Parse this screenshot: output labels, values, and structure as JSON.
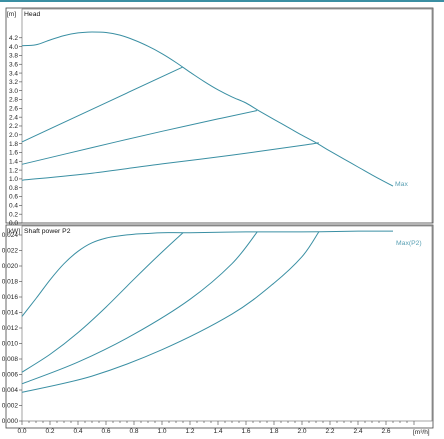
{
  "chart_data": [
    {
      "type": "line",
      "title": "Head",
      "yunit": "[m]",
      "ylim": [
        0,
        4.4
      ],
      "yticks": [
        0.0,
        0.2,
        0.4,
        0.6,
        0.8,
        1.0,
        1.2,
        1.4,
        1.6,
        1.8,
        2.0,
        2.2,
        2.4,
        2.6,
        2.8,
        3.0,
        3.2,
        3.4,
        3.6,
        3.8,
        4.0,
        4.2
      ],
      "ytick_labels": [
        "0.0",
        "0.2",
        "0.4",
        "0.6",
        "0.8",
        "1.0",
        "1.2",
        "1.4",
        "1.6",
        "1.8",
        "2.0",
        "2.2",
        "2.4",
        "2.6",
        "2.8",
        "3.0",
        "3.2",
        "3.4",
        "3.6",
        "3.8",
        "4.0",
        "4.2"
      ],
      "xlim": [
        0,
        2.8
      ],
      "series": [
        {
          "name": "Max",
          "points": [
            [
              0.0,
              4.02
            ],
            [
              0.1,
              4.04
            ],
            [
              0.2,
              4.15
            ],
            [
              0.3,
              4.25
            ],
            [
              0.4,
              4.31
            ],
            [
              0.5,
              4.33
            ],
            [
              0.6,
              4.32
            ],
            [
              0.7,
              4.26
            ],
            [
              0.8,
              4.15
            ],
            [
              0.9,
              4.01
            ],
            [
              1.0,
              3.84
            ],
            [
              1.1,
              3.64
            ],
            [
              1.2,
              3.42
            ],
            [
              1.3,
              3.21
            ],
            [
              1.4,
              3.02
            ],
            [
              1.5,
              2.86
            ],
            [
              1.6,
              2.72
            ],
            [
              1.7,
              2.53
            ],
            [
              1.8,
              2.35
            ],
            [
              1.9,
              2.17
            ],
            [
              2.0,
              1.99
            ],
            [
              2.1,
              1.82
            ],
            [
              2.2,
              1.63
            ],
            [
              2.3,
              1.45
            ],
            [
              2.4,
              1.27
            ],
            [
              2.5,
              1.09
            ],
            [
              2.6,
              0.92
            ],
            [
              2.65,
              0.84
            ]
          ]
        },
        {
          "points": [
            [
              0.0,
              1.84
            ],
            [
              1.15,
              3.54
            ]
          ]
        },
        {
          "points": [
            [
              0.0,
              1.33
            ],
            [
              0.5,
              1.71
            ],
            [
              1.0,
              2.08
            ],
            [
              1.4,
              2.36
            ],
            [
              1.68,
              2.55
            ]
          ]
        },
        {
          "points": [
            [
              0.0,
              0.97
            ],
            [
              0.5,
              1.13
            ],
            [
              1.0,
              1.34
            ],
            [
              1.5,
              1.54
            ],
            [
              2.0,
              1.76
            ],
            [
              2.12,
              1.82
            ]
          ]
        }
      ],
      "curve_label": "Max"
    },
    {
      "type": "line",
      "title": "Shaft power P2",
      "yunit": "[kW]",
      "xlabel": "[m³/h]",
      "ylim": [
        0,
        0.025
      ],
      "yticks": [
        0.0,
        0.002,
        0.004,
        0.006,
        0.008,
        0.01,
        0.012,
        0.014,
        0.016,
        0.018,
        0.02,
        0.022,
        0.024
      ],
      "ytick_labels": [
        "0.000",
        "0.002",
        "0.004",
        "0.006",
        "0.008",
        "0.010",
        "0.012",
        "0.014",
        "0.016",
        "0.018",
        "0.020",
        "0.022",
        "0.024"
      ],
      "xlim": [
        0,
        2.8
      ],
      "xticks": [
        0.0,
        0.2,
        0.4,
        0.6,
        0.8,
        1.0,
        1.2,
        1.4,
        1.6,
        1.8,
        2.0,
        2.2,
        2.4,
        2.6
      ],
      "xtick_labels": [
        "0.0",
        "0.2",
        "0.4",
        "0.6",
        "0.8",
        "1.0",
        "1.2",
        "1.4",
        "1.6",
        "1.8",
        "2.0",
        "2.2",
        "2.4",
        "2.6"
      ],
      "series": [
        {
          "name": "Max",
          "points": [
            [
              0.0,
              0.0135
            ],
            [
              0.1,
              0.0158
            ],
            [
              0.2,
              0.0182
            ],
            [
              0.3,
              0.0203
            ],
            [
              0.4,
              0.0219
            ],
            [
              0.5,
              0.023
            ],
            [
              0.6,
              0.0236
            ],
            [
              0.7,
              0.0239
            ],
            [
              0.8,
              0.0241
            ],
            [
              0.9,
              0.0242
            ],
            [
              1.0,
              0.0243
            ],
            [
              1.2,
              0.0243
            ],
            [
              1.6,
              0.0244
            ],
            [
              2.0,
              0.0244
            ],
            [
              2.4,
              0.0245
            ],
            [
              2.65,
              0.0245
            ]
          ]
        },
        {
          "points": [
            [
              0.0,
              0.0063
            ],
            [
              0.2,
              0.0086
            ],
            [
              0.4,
              0.0114
            ],
            [
              0.6,
              0.0147
            ],
            [
              0.8,
              0.0183
            ],
            [
              1.0,
              0.0218
            ],
            [
              1.15,
              0.0243
            ]
          ]
        },
        {
          "points": [
            [
              0.0,
              0.0048
            ],
            [
              0.4,
              0.0076
            ],
            [
              0.8,
              0.0112
            ],
            [
              1.2,
              0.0157
            ],
            [
              1.5,
              0.0203
            ],
            [
              1.68,
              0.0244
            ]
          ]
        },
        {
          "points": [
            [
              0.0,
              0.0037
            ],
            [
              0.5,
              0.0058
            ],
            [
              1.0,
              0.0092
            ],
            [
              1.5,
              0.0138
            ],
            [
              1.8,
              0.0178
            ],
            [
              2.0,
              0.0212
            ],
            [
              2.12,
              0.0244
            ]
          ]
        }
      ],
      "curve_label": "Max(P2)"
    }
  ]
}
